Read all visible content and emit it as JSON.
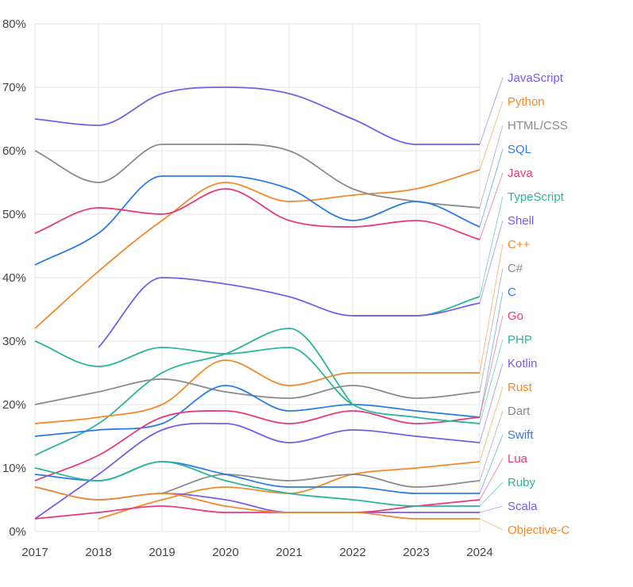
{
  "chart_data": {
    "type": "line",
    "title": "",
    "xlabel": "",
    "ylabel": "",
    "ylim": [
      0,
      80
    ],
    "grid": true,
    "legend": "right",
    "x": [
      2017,
      2018,
      2019,
      2020,
      2021,
      2022,
      2023,
      2024
    ],
    "x_tick_labels": [
      "2017",
      "2018",
      "2019",
      "2020",
      "2021",
      "2022",
      "2023",
      "2024"
    ],
    "y_tick_labels": [
      "0%",
      "10%",
      "20%",
      "30%",
      "40%",
      "50%",
      "60%",
      "70%",
      "80%"
    ],
    "series": [
      {
        "name": "JavaScript",
        "color": "#7b5ce6",
        "values": [
          65,
          64,
          69,
          70,
          69,
          65,
          61,
          61
        ]
      },
      {
        "name": "Python",
        "color": "#f28a2c",
        "values": [
          32,
          41,
          49,
          55,
          52,
          53,
          54,
          57
        ]
      },
      {
        "name": "HTML/CSS",
        "color": "#8a8a8a",
        "values": [
          60,
          55,
          61,
          61,
          60,
          54,
          52,
          51
        ]
      },
      {
        "name": "SQL",
        "color": "#2b7be4",
        "values": [
          42,
          47,
          56,
          56,
          54,
          49,
          52,
          48
        ]
      },
      {
        "name": "Java",
        "color": "#e9397a",
        "values": [
          47,
          51,
          50,
          54,
          49,
          48,
          49,
          46
        ]
      },
      {
        "name": "TypeScript",
        "color": "#2bb59a",
        "values": [
          null,
          null,
          null,
          null,
          null,
          34,
          34,
          37
        ]
      },
      {
        "name": "Shell",
        "color": "#7b5ce6",
        "values": [
          null,
          29,
          40,
          39,
          37,
          34,
          34,
          36
        ]
      },
      {
        "name": "C++",
        "color": "#f28a2c",
        "values": [
          17,
          18,
          20,
          27,
          23,
          25,
          25,
          25
        ]
      },
      {
        "name": "C#",
        "color": "#8a8a8a",
        "values": [
          20,
          22,
          24,
          22,
          21,
          23,
          21,
          22
        ]
      },
      {
        "name": "C",
        "color": "#2b7be4",
        "values": [
          15,
          16,
          17,
          23,
          19,
          20,
          19,
          18
        ]
      },
      {
        "name": "Go",
        "color": "#e9397a",
        "values": [
          8,
          12,
          18,
          19,
          17,
          19,
          17,
          18
        ]
      },
      {
        "name": "PHP",
        "color": "#2bb59a",
        "values": [
          30,
          26,
          29,
          28,
          29,
          20,
          18,
          17
        ]
      },
      {
        "name": "Kotlin",
        "color": "#7b5ce6",
        "values": [
          2,
          9,
          16,
          17,
          14,
          16,
          15,
          14
        ]
      },
      {
        "name": "Rust",
        "color": "#f28a2c",
        "values": [
          null,
          2,
          5,
          7,
          6,
          9,
          10,
          11
        ]
      },
      {
        "name": "Dart",
        "color": "#8a8a8a",
        "values": [
          null,
          null,
          6,
          9,
          8,
          9,
          7,
          8
        ]
      },
      {
        "name": "Swift",
        "color": "#2b7be4",
        "values": [
          9,
          8,
          11,
          9,
          7,
          7,
          6,
          6
        ]
      },
      {
        "name": "Lua",
        "color": "#e9397a",
        "values": [
          2,
          3,
          4,
          3,
          3,
          3,
          4,
          5
        ]
      },
      {
        "name": "Ruby",
        "color": "#2bb59a",
        "values": [
          10,
          8,
          11,
          8,
          6,
          5,
          4,
          4
        ]
      },
      {
        "name": "Scala",
        "color": "#7b5ce6",
        "values": [
          7,
          5,
          6,
          5,
          3,
          3,
          3,
          3
        ]
      },
      {
        "name": "Objective-C",
        "color": "#f28a2c",
        "values": [
          7,
          5,
          6,
          4,
          3,
          3,
          2,
          2
        ]
      }
    ],
    "extra_lines": [
      {
        "color": "#2bb59a",
        "values": [
          12,
          17,
          25,
          28,
          32,
          20,
          null,
          null
        ]
      }
    ]
  }
}
